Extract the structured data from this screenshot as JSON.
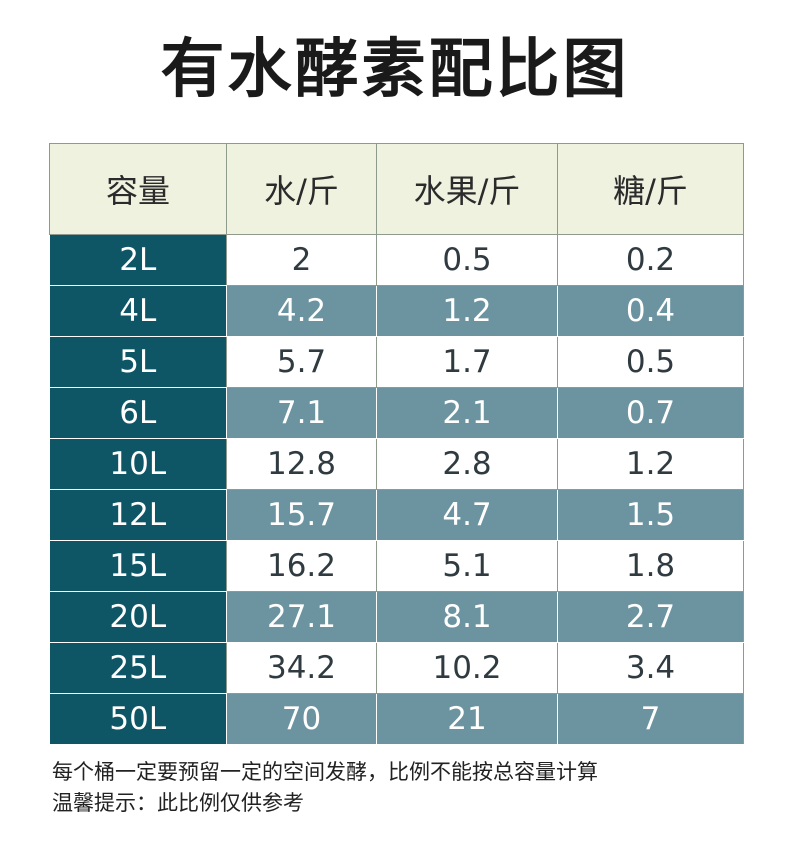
{
  "title": "有水酵素配比图",
  "table": {
    "headers": [
      "容量",
      "水/斤",
      "水果/斤",
      "糖/斤"
    ],
    "rows": [
      [
        "2L",
        "2",
        "0.5",
        "0.2"
      ],
      [
        "4L",
        "4.2",
        "1.2",
        "0.4"
      ],
      [
        "5L",
        "5.7",
        "1.7",
        "0.5"
      ],
      [
        "6L",
        "7.1",
        "2.1",
        "0.7"
      ],
      [
        "10L",
        "12.8",
        "2.8",
        "1.2"
      ],
      [
        "12L",
        "15.7",
        "4.7",
        "1.5"
      ],
      [
        "15L",
        "16.2",
        "5.1",
        "1.8"
      ],
      [
        "20L",
        "27.1",
        "8.1",
        "2.7"
      ],
      [
        "25L",
        "34.2",
        "10.2",
        "3.4"
      ],
      [
        "50L",
        "70",
        "21",
        "7"
      ]
    ]
  },
  "notes": {
    "line1": "每个桶一定要预留一定的空间发酵，比例不能按总容量计算",
    "line2": "温馨提示：此比例仅供参考"
  },
  "colors": {
    "header_bg": "#eff2df",
    "capacity_bg": "#0e5566",
    "dark_row_bg": "#6b94a0",
    "light_row_bg": "#ffffff"
  }
}
